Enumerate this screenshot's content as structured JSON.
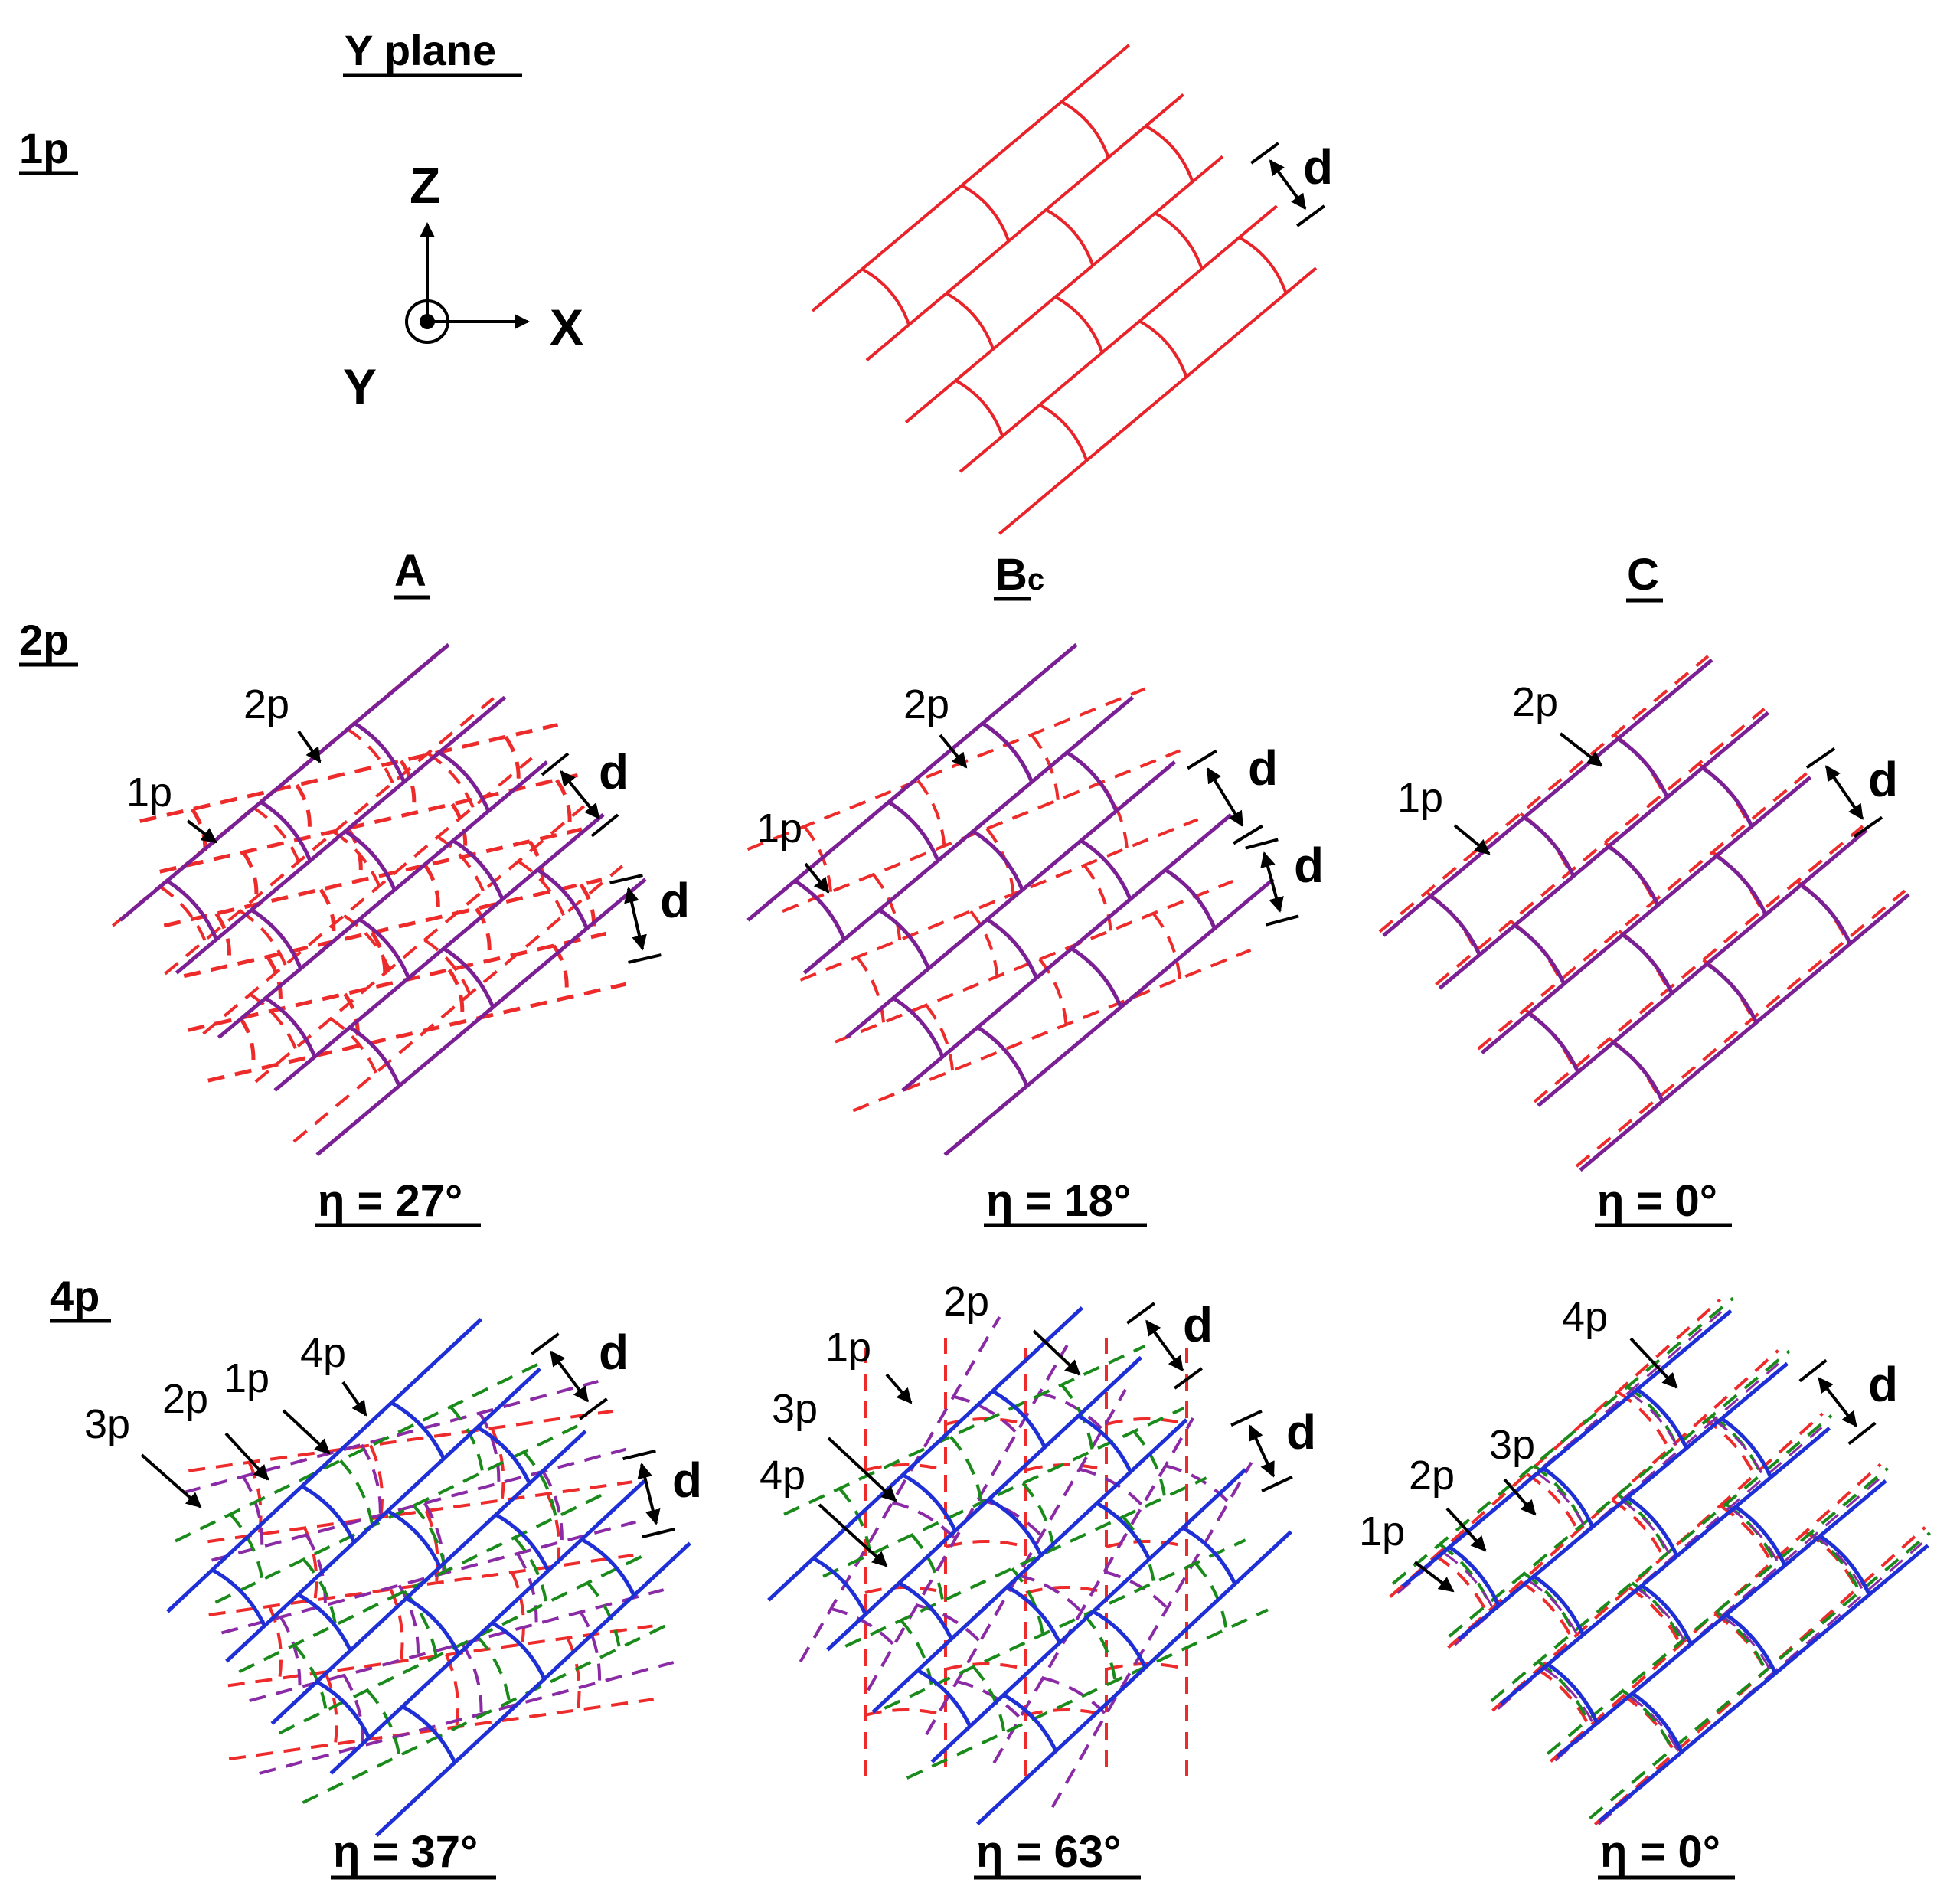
{
  "title": "Y plane",
  "rows": {
    "row1": "1p",
    "row2": "2p",
    "row4": "4p"
  },
  "columns": {
    "a": "A",
    "b_main": "B",
    "b_sub": "c",
    "c": "C"
  },
  "axes": {
    "z": "Z",
    "x": "X",
    "y": "Y"
  },
  "spacing_label": "d",
  "eta": {
    "2p_A": "η = 27°",
    "2p_B": "η = 18°",
    "2p_C": "η = 0°",
    "4p_A": "η = 37°",
    "4p_B": "η = 63°",
    "4p_C": "η = 0°"
  },
  "pass_labels": {
    "p1": "1p",
    "p2": "2p",
    "p3": "3p",
    "p4": "4p"
  },
  "colors": {
    "pass1_single": "#e8232a",
    "pass2_overlay": "#7b1f95",
    "pass4_solid": "#1f2fd6",
    "dashed_red": "#ee2b2b",
    "dashed_green": "#1a8a1a",
    "dashed_purple": "#8a2aa5"
  }
}
